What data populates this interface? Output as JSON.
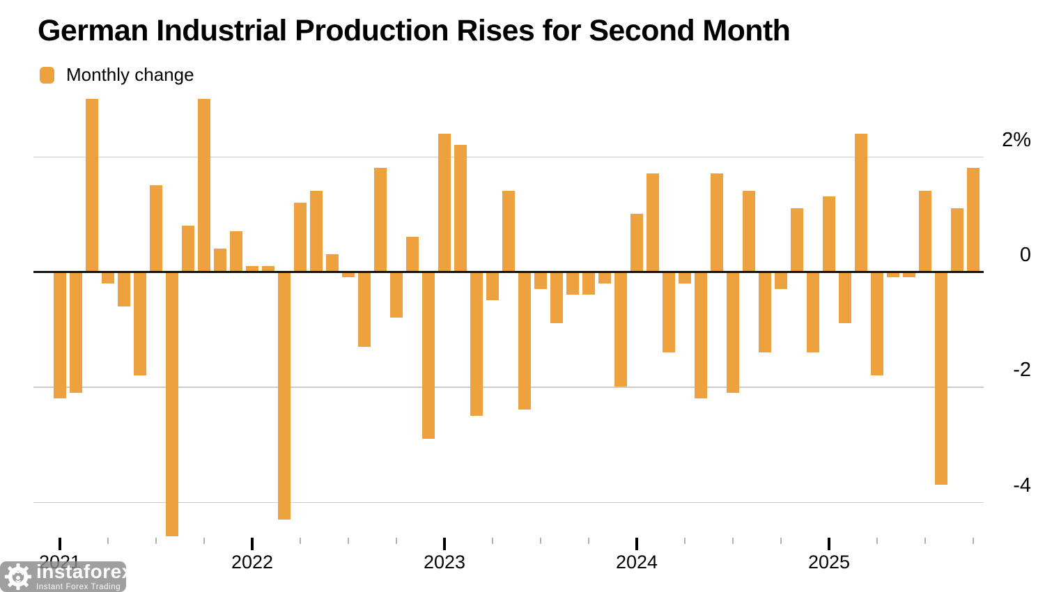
{
  "title": "German Industrial Production Rises for Second Month",
  "legend": {
    "label": "Monthly change"
  },
  "colors": {
    "bar": "#EDA23F",
    "gridline": "#CCCCCC",
    "zero_line": "#111111",
    "axis_text": "#000000",
    "minor_tick": "#B3B3B3",
    "watermark_bg": "#8A8A8A",
    "watermark_text": "#FFFFFF"
  },
  "y_axis": {
    "tick_labels": [
      "2%",
      "0",
      "-2",
      "-4"
    ],
    "tick_values": [
      2,
      0,
      -2,
      -4
    ]
  },
  "x_axis": {
    "year_labels": [
      "2021",
      "2022",
      "2023",
      "2024",
      "2025"
    ]
  },
  "watermark": {
    "brand": "instaforex",
    "tagline": "Instant Forex Trading",
    "logo": "gear-bull-icon"
  },
  "chart_data": {
    "type": "bar",
    "series_name": "Monthly change",
    "unit": "%",
    "ylim": [
      -4.8,
      3.2
    ],
    "grid": "horizontal",
    "legend_position": "top-left",
    "years": [
      "2021",
      "2022",
      "2023",
      "2024",
      "2025"
    ],
    "values_by_year": {
      "2021": [
        -2.2,
        -2.1,
        3.0,
        -0.2,
        -0.6,
        -1.8,
        1.5,
        -4.6,
        0.8,
        3.0,
        0.4,
        0.7
      ],
      "2022": [
        0.1,
        0.1,
        -4.3,
        1.2,
        1.4,
        0.3,
        -0.1,
        -1.3,
        1.8,
        -0.8,
        0.6,
        -2.9
      ],
      "2023": [
        2.4,
        2.2,
        -2.5,
        -0.5,
        1.4,
        -2.4,
        -0.3,
        -0.9,
        -0.4,
        -0.4,
        -0.2,
        -2.0
      ],
      "2024": [
        1.0,
        1.7,
        -1.4,
        -0.2,
        -2.2,
        1.7,
        -2.1,
        1.4,
        -1.4,
        -0.3,
        1.1,
        -1.4
      ],
      "2025": [
        1.3,
        -0.9,
        2.4,
        -1.8,
        -0.1,
        -0.1,
        1.4,
        -3.7,
        1.1,
        1.8
      ]
    }
  }
}
